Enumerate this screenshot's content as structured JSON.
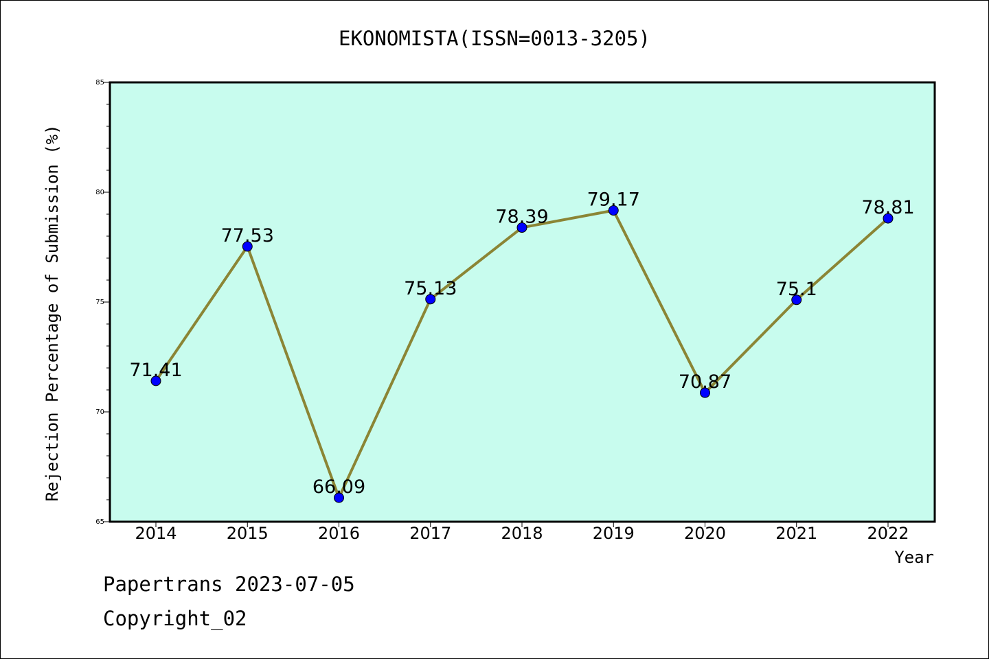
{
  "chart_data": {
    "type": "line",
    "title": "EKONOMISTA(ISSN=0013-3205)",
    "xlabel": "Year",
    "ylabel": "Rejection Percentage of Submission (%)",
    "categories": [
      "2014",
      "2015",
      "2016",
      "2017",
      "2018",
      "2019",
      "2020",
      "2021",
      "2022"
    ],
    "series": [
      {
        "values": [
          71.41,
          77.53,
          66.09,
          75.13,
          78.39,
          79.17,
          70.87,
          75.1,
          78.81
        ],
        "labels": [
          "71.41",
          "77.53",
          "66.09",
          "75.13",
          "78.39",
          "79.17",
          "70.87",
          "75.1",
          "78.81"
        ]
      }
    ],
    "ylim": [
      65,
      85
    ],
    "yticks": [
      65,
      70,
      75,
      80,
      85
    ],
    "ytick_labels": [
      "65",
      "70",
      "75",
      "80",
      "85"
    ],
    "grid": false,
    "colors": {
      "plot_background": "#c8fcee",
      "line": "#8b8535",
      "marker": "#0000ff"
    }
  },
  "footer": {
    "line1": "Papertrans 2023-07-05",
    "line2": "Copyright_02"
  }
}
